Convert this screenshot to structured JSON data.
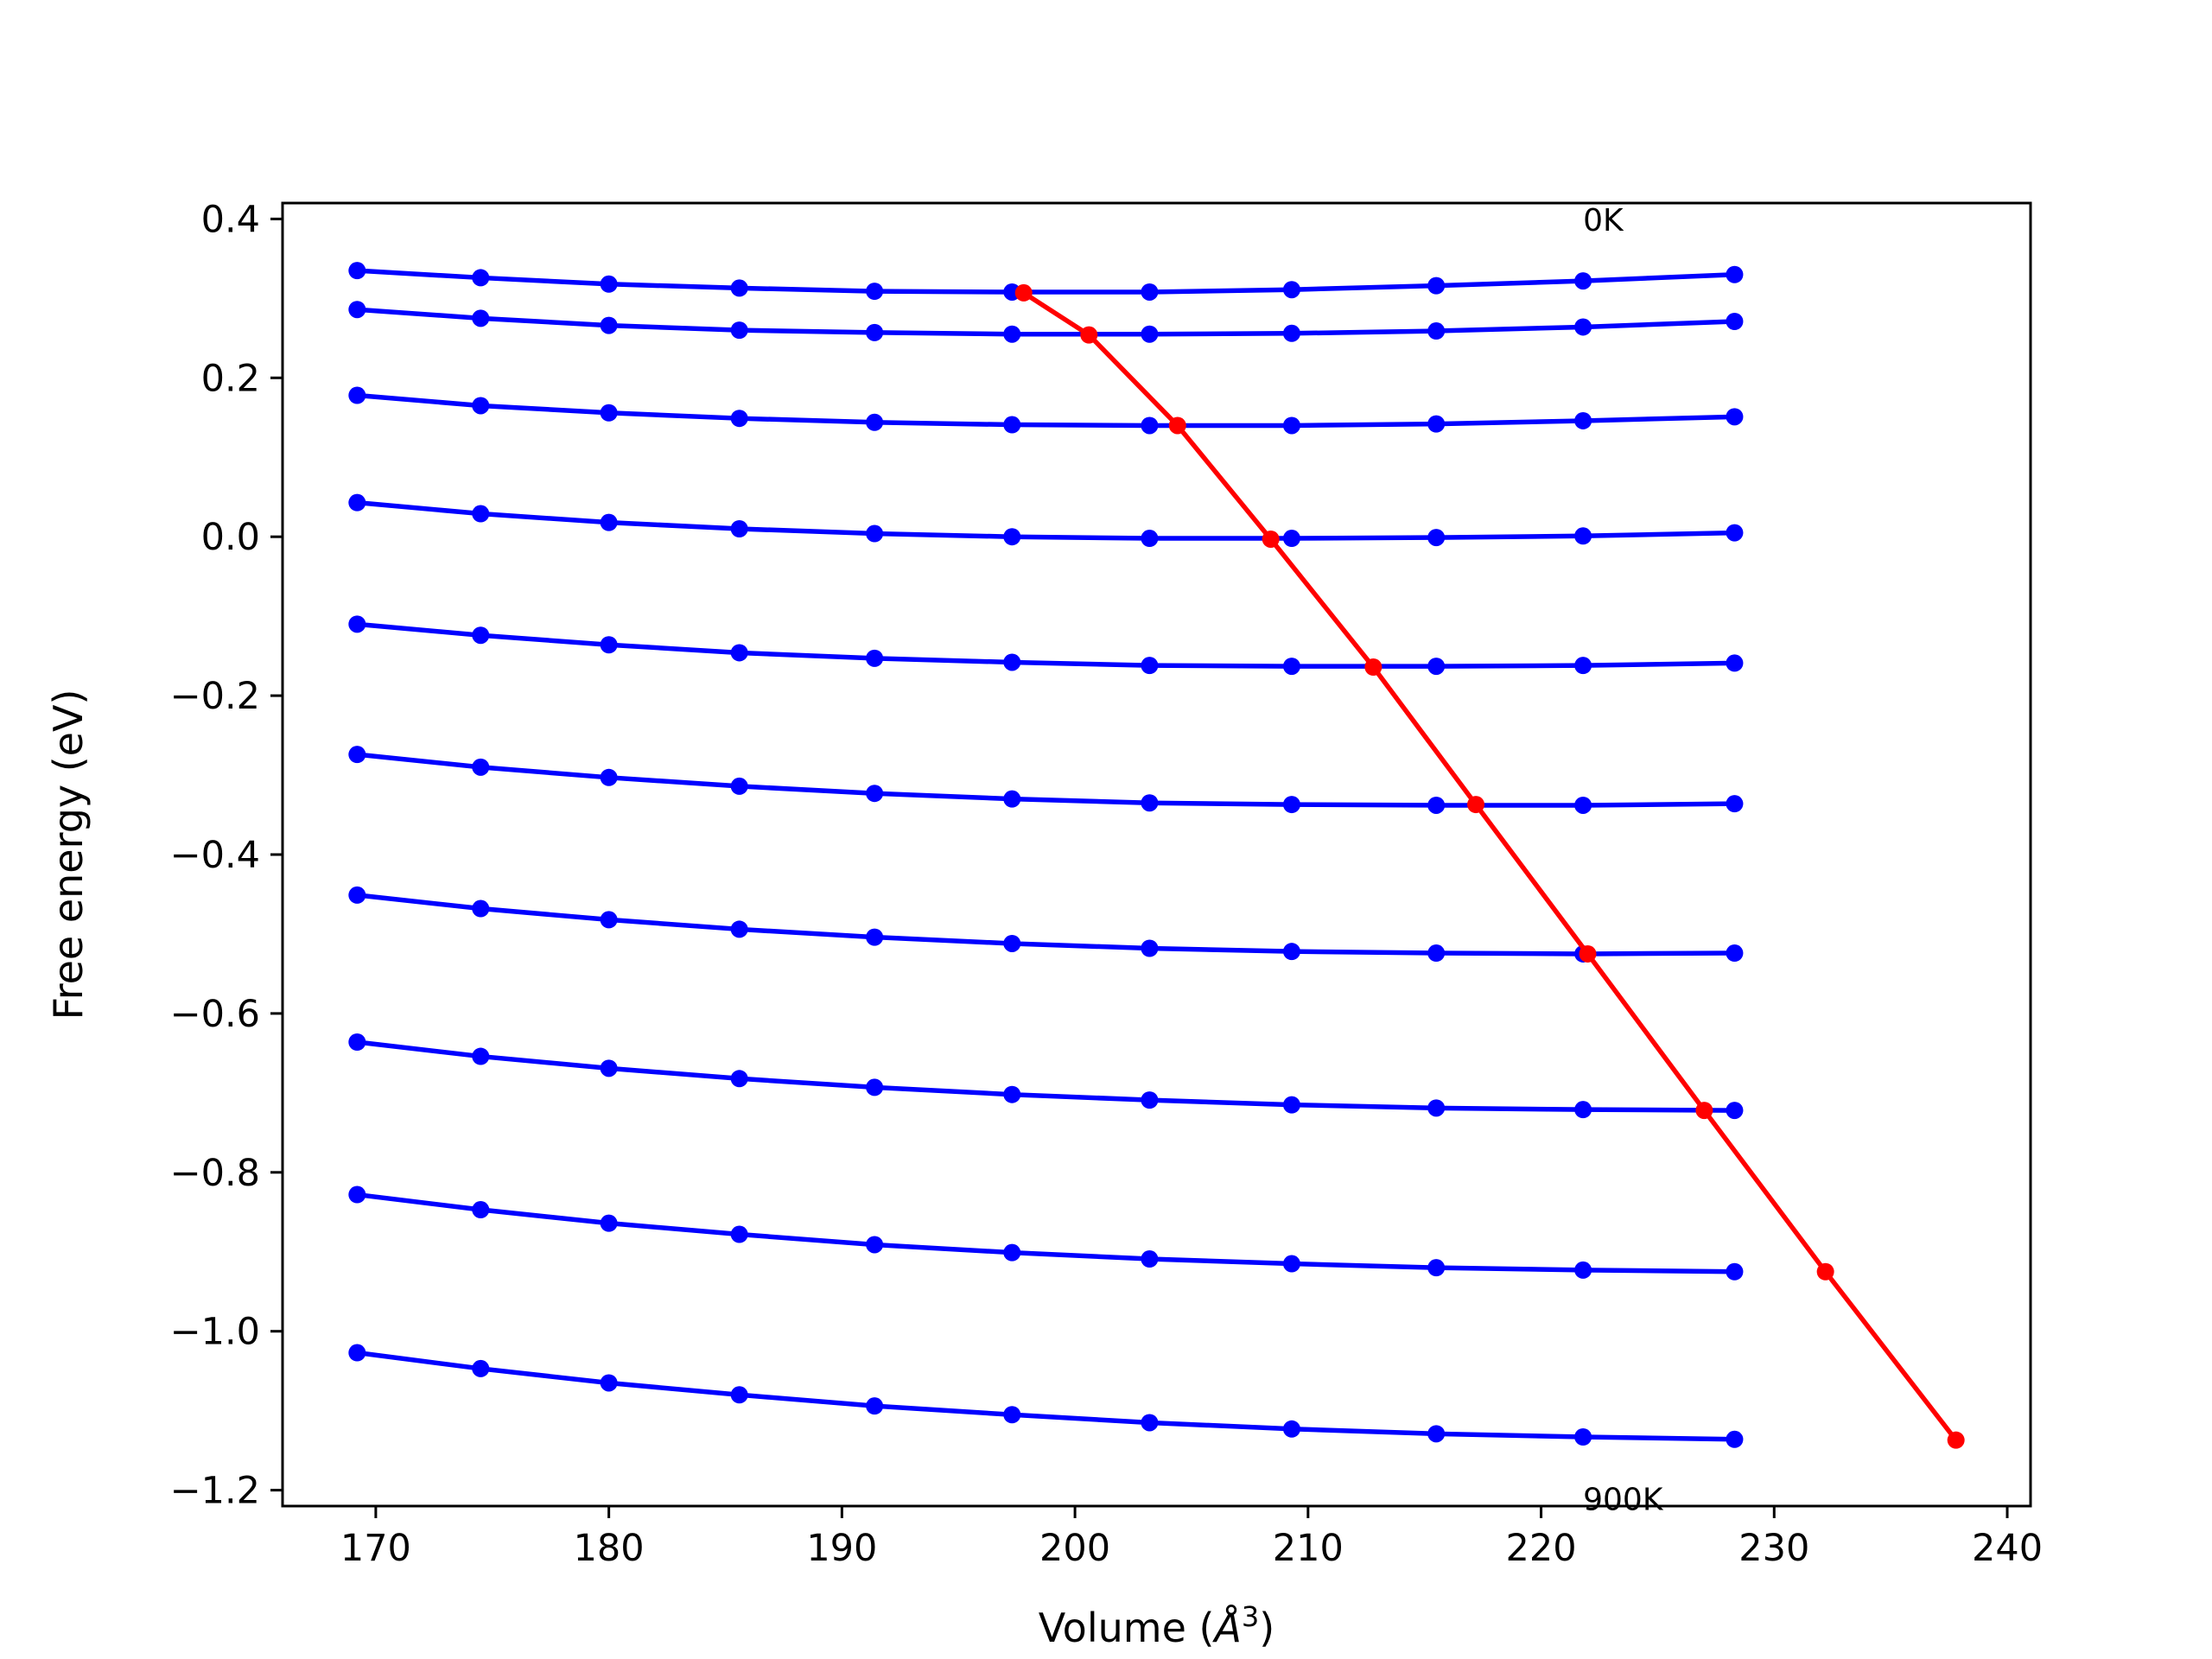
{
  "chart_data": {
    "type": "line",
    "xlabel_main": "Volume (",
    "xlabel_unit_base": "Å",
    "xlabel_unit_exp": "3",
    "xlabel_close": ")",
    "ylabel": "Free energy (eV)",
    "xlim": [
      166,
      241
    ],
    "ylim": [
      -1.22,
      0.42
    ],
    "x_ticks": [
      170,
      180,
      190,
      200,
      210,
      220,
      230,
      240
    ],
    "y_ticks": [
      0.4,
      0.2,
      0.0,
      -0.2,
      -0.4,
      -0.6,
      -0.8,
      -1.0,
      -1.2
    ],
    "y_tick_labels": [
      "0.4",
      "0.2",
      "0.0",
      "−0.2",
      "−0.4",
      "−0.6",
      "−0.8",
      "−1.0",
      "−1.2"
    ],
    "annotations": [
      {
        "text": "0K",
        "x": 221.8,
        "y": 0.385
      },
      {
        "text": "900K",
        "x": 221.8,
        "y": -1.225
      }
    ],
    "x_volumes": [
      169.2,
      174.5,
      180.0,
      185.6,
      191.4,
      197.3,
      203.2,
      209.3,
      215.5,
      221.8,
      228.3
    ],
    "series": [
      {
        "color": "#0000ff",
        "values": [
          0.335,
          0.326,
          0.318,
          0.313,
          0.309,
          0.308,
          0.308,
          0.311,
          0.316,
          0.322,
          0.33
        ]
      },
      {
        "color": "#0000ff",
        "values": [
          0.286,
          0.275,
          0.266,
          0.26,
          0.257,
          0.255,
          0.255,
          0.256,
          0.259,
          0.264,
          0.271
        ]
      },
      {
        "color": "#0000ff",
        "values": [
          0.178,
          0.165,
          0.156,
          0.149,
          0.144,
          0.141,
          0.14,
          0.14,
          0.142,
          0.146,
          0.151
        ]
      },
      {
        "color": "#0000ff",
        "values": [
          0.043,
          0.029,
          0.018,
          0.01,
          0.004,
          0.0,
          -0.002,
          -0.002,
          -0.001,
          0.001,
          0.005
        ]
      },
      {
        "color": "#0000ff",
        "values": [
          -0.11,
          -0.124,
          -0.136,
          -0.146,
          -0.153,
          -0.158,
          -0.162,
          -0.163,
          -0.163,
          -0.162,
          -0.159
        ]
      },
      {
        "color": "#0000ff",
        "values": [
          -0.274,
          -0.29,
          -0.303,
          -0.314,
          -0.323,
          -0.33,
          -0.335,
          -0.337,
          -0.338,
          -0.338,
          -0.336
        ]
      },
      {
        "color": "#0000ff",
        "values": [
          -0.451,
          -0.468,
          -0.482,
          -0.494,
          -0.504,
          -0.512,
          -0.518,
          -0.522,
          -0.524,
          -0.525,
          -0.524
        ]
      },
      {
        "color": "#0000ff",
        "values": [
          -0.636,
          -0.654,
          -0.669,
          -0.682,
          -0.693,
          -0.702,
          -0.709,
          -0.715,
          -0.719,
          -0.721,
          -0.722
        ]
      },
      {
        "color": "#0000ff",
        "values": [
          -0.828,
          -0.847,
          -0.864,
          -0.878,
          -0.891,
          -0.901,
          -0.909,
          -0.915,
          -0.92,
          -0.923,
          -0.925
        ]
      },
      {
        "color": "#0000ff",
        "values": [
          -1.027,
          -1.047,
          -1.065,
          -1.08,
          -1.094,
          -1.105,
          -1.115,
          -1.123,
          -1.129,
          -1.133,
          -1.136
        ]
      }
    ],
    "minimum_curve": {
      "color": "#ff0000",
      "x": [
        197.8,
        200.6,
        204.4,
        208.4,
        212.8,
        217.2,
        222.0,
        227.0,
        232.2,
        237.8
      ],
      "y": [
        0.307,
        0.254,
        0.14,
        -0.003,
        -0.164,
        -0.337,
        -0.525,
        -0.722,
        -0.925,
        -1.137
      ]
    }
  }
}
